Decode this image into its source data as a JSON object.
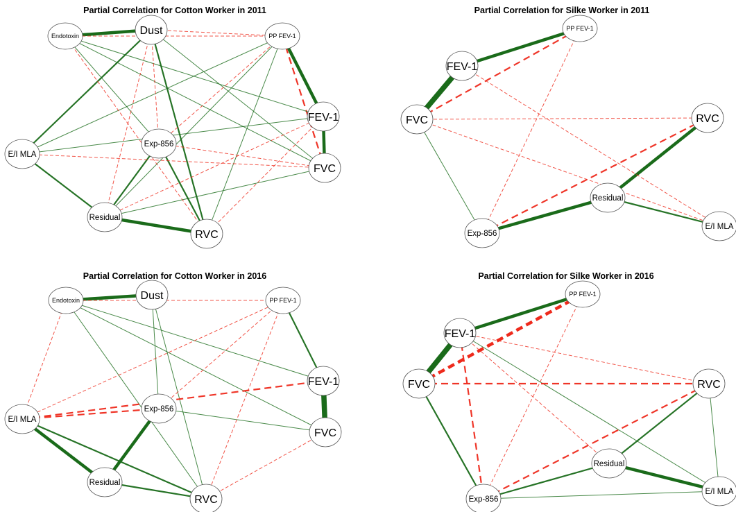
{
  "colors": {
    "positive": "#1a6b1a",
    "negative": "#ee2a1c"
  },
  "panels": [
    {
      "title": "Partial Correlation for Cotton Worker in 2011",
      "nodes": [
        {
          "id": "dust",
          "label": "Dust",
          "size": "large"
        },
        {
          "id": "endotoxin",
          "label": "Endotoxin",
          "size": "small"
        },
        {
          "id": "ppfev1",
          "label": "PP FEV-1",
          "size": "small"
        },
        {
          "id": "fev1",
          "label": "FEV-1",
          "size": "large"
        },
        {
          "id": "exp856",
          "label": "Exp-856",
          "size": "medium"
        },
        {
          "id": "eimla",
          "label": "E/I MLA",
          "size": "medium"
        },
        {
          "id": "fvc",
          "label": "FVC",
          "size": "large"
        },
        {
          "id": "residual",
          "label": "Residual",
          "size": "medium"
        },
        {
          "id": "rvc",
          "label": "RVC",
          "size": "large"
        }
      ],
      "edges": [
        {
          "from": "endotoxin",
          "to": "dust",
          "sign": "positive",
          "weight": "strong"
        },
        {
          "from": "ppfev1",
          "to": "fev1",
          "sign": "positive",
          "weight": "strong"
        },
        {
          "from": "fev1",
          "to": "fvc",
          "sign": "positive",
          "weight": "strong"
        },
        {
          "from": "ppfev1",
          "to": "fvc",
          "sign": "negative",
          "weight": "medium"
        },
        {
          "from": "residual",
          "to": "rvc",
          "sign": "positive",
          "weight": "strong"
        },
        {
          "from": "dust",
          "to": "eimla",
          "sign": "positive",
          "weight": "medium"
        },
        {
          "from": "dust",
          "to": "rvc",
          "sign": "positive",
          "weight": "medium"
        },
        {
          "from": "eimla",
          "to": "residual",
          "sign": "positive",
          "weight": "medium"
        },
        {
          "from": "exp856",
          "to": "residual",
          "sign": "positive",
          "weight": "medium"
        },
        {
          "from": "exp856",
          "to": "rvc",
          "sign": "positive",
          "weight": "medium"
        },
        {
          "from": "endotoxin",
          "to": "fev1",
          "sign": "positive",
          "weight": "thin"
        },
        {
          "from": "endotoxin",
          "to": "fvc",
          "sign": "positive",
          "weight": "thin"
        },
        {
          "from": "endotoxin",
          "to": "exp856",
          "sign": "positive",
          "weight": "thin"
        },
        {
          "from": "dust",
          "to": "fvc",
          "sign": "positive",
          "weight": "thin"
        },
        {
          "from": "ppfev1",
          "to": "eimla",
          "sign": "positive",
          "weight": "thin"
        },
        {
          "from": "ppfev1",
          "to": "residual",
          "sign": "positive",
          "weight": "thin"
        },
        {
          "from": "ppfev1",
          "to": "rvc",
          "sign": "positive",
          "weight": "thin"
        },
        {
          "from": "eimla",
          "to": "fev1",
          "sign": "positive",
          "weight": "thin"
        },
        {
          "from": "residual",
          "to": "fvc",
          "sign": "positive",
          "weight": "thin"
        },
        {
          "from": "dust",
          "to": "ppfev1",
          "sign": "negative",
          "weight": "thin"
        },
        {
          "from": "endotoxin",
          "to": "ppfev1",
          "sign": "negative",
          "weight": "thin"
        },
        {
          "from": "dust",
          "to": "exp856",
          "sign": "negative",
          "weight": "thin"
        },
        {
          "from": "dust",
          "to": "residual",
          "sign": "negative",
          "weight": "thin"
        },
        {
          "from": "endotoxin",
          "to": "rvc",
          "sign": "negative",
          "weight": "thin"
        },
        {
          "from": "eimla",
          "to": "fvc",
          "sign": "negative",
          "weight": "thin"
        },
        {
          "from": "residual",
          "to": "fev1",
          "sign": "negative",
          "weight": "thin"
        },
        {
          "from": "ppfev1",
          "to": "exp856",
          "sign": "negative",
          "weight": "thin"
        },
        {
          "from": "rvc",
          "to": "fev1",
          "sign": "negative",
          "weight": "thin"
        },
        {
          "from": "exp856",
          "to": "fvc",
          "sign": "negative",
          "weight": "thin"
        }
      ]
    },
    {
      "title": "Partial Correlation for Silke Worker in 2011",
      "nodes": [
        {
          "id": "ppfev1",
          "label": "PP FEV-1",
          "size": "small"
        },
        {
          "id": "fev1",
          "label": "FEV-1",
          "size": "large"
        },
        {
          "id": "fvc",
          "label": "FVC",
          "size": "large"
        },
        {
          "id": "rvc",
          "label": "RVC",
          "size": "large"
        },
        {
          "id": "residual",
          "label": "Residual",
          "size": "medium"
        },
        {
          "id": "exp856",
          "label": "Exp-856",
          "size": "medium"
        },
        {
          "id": "eimla",
          "label": "E/I MLA",
          "size": "medium"
        }
      ],
      "edges": [
        {
          "from": "fev1",
          "to": "ppfev1",
          "sign": "positive",
          "weight": "strong"
        },
        {
          "from": "fvc",
          "to": "fev1",
          "sign": "positive",
          "weight": "xstrong"
        },
        {
          "from": "residual",
          "to": "rvc",
          "sign": "positive",
          "weight": "strong"
        },
        {
          "from": "exp856",
          "to": "residual",
          "sign": "positive",
          "weight": "strong"
        },
        {
          "from": "residual",
          "to": "eimla",
          "sign": "positive",
          "weight": "medium"
        },
        {
          "from": "fvc",
          "to": "exp856",
          "sign": "positive",
          "weight": "thin"
        },
        {
          "from": "fvc",
          "to": "ppfev1",
          "sign": "negative",
          "weight": "medium"
        },
        {
          "from": "exp856",
          "to": "rvc",
          "sign": "negative",
          "weight": "medium"
        },
        {
          "from": "fvc",
          "to": "rvc",
          "sign": "negative",
          "weight": "thin"
        },
        {
          "from": "fvc",
          "to": "eimla",
          "sign": "negative",
          "weight": "thin"
        },
        {
          "from": "fev1",
          "to": "eimla",
          "sign": "negative",
          "weight": "thin"
        },
        {
          "from": "ppfev1",
          "to": "exp856",
          "sign": "negative",
          "weight": "thin"
        }
      ]
    },
    {
      "title": "Partial Correlation for Cotton Worker in 2016",
      "nodes": [
        {
          "id": "dust",
          "label": "Dust",
          "size": "large"
        },
        {
          "id": "endotoxin",
          "label": "Endotoxin",
          "size": "small"
        },
        {
          "id": "ppfev1",
          "label": "PP FEV-1",
          "size": "small"
        },
        {
          "id": "fev1",
          "label": "FEV-1",
          "size": "large"
        },
        {
          "id": "exp856",
          "label": "Exp-856",
          "size": "medium"
        },
        {
          "id": "eimla",
          "label": "E/I MLA",
          "size": "medium"
        },
        {
          "id": "fvc",
          "label": "FVC",
          "size": "large"
        },
        {
          "id": "residual",
          "label": "Residual",
          "size": "medium"
        },
        {
          "id": "rvc",
          "label": "RVC",
          "size": "large"
        }
      ],
      "edges": [
        {
          "from": "endotoxin",
          "to": "dust",
          "sign": "positive",
          "weight": "strong"
        },
        {
          "from": "fev1",
          "to": "fvc",
          "sign": "positive",
          "weight": "xstrong"
        },
        {
          "from": "ppfev1",
          "to": "fev1",
          "sign": "positive",
          "weight": "medium"
        },
        {
          "from": "eimla",
          "to": "residual",
          "sign": "positive",
          "weight": "strong"
        },
        {
          "from": "exp856",
          "to": "residual",
          "sign": "positive",
          "weight": "strong"
        },
        {
          "from": "residual",
          "to": "rvc",
          "sign": "positive",
          "weight": "medium"
        },
        {
          "from": "eimla",
          "to": "rvc",
          "sign": "positive",
          "weight": "medium"
        },
        {
          "from": "endotoxin",
          "to": "fev1",
          "sign": "positive",
          "weight": "thin"
        },
        {
          "from": "endotoxin",
          "to": "fvc",
          "sign": "positive",
          "weight": "thin"
        },
        {
          "from": "endotoxin",
          "to": "rvc",
          "sign": "positive",
          "weight": "thin"
        },
        {
          "from": "dust",
          "to": "exp856",
          "sign": "positive",
          "weight": "thin"
        },
        {
          "from": "dust",
          "to": "rvc",
          "sign": "positive",
          "weight": "thin"
        },
        {
          "from": "exp856",
          "to": "fvc",
          "sign": "positive",
          "weight": "thin"
        },
        {
          "from": "endotoxin",
          "to": "ppfev1",
          "sign": "negative",
          "weight": "thin"
        },
        {
          "from": "endotoxin",
          "to": "eimla",
          "sign": "negative",
          "weight": "thin"
        },
        {
          "from": "eimla",
          "to": "ppfev1",
          "sign": "negative",
          "weight": "thin"
        },
        {
          "from": "eimla",
          "to": "fev1",
          "sign": "negative",
          "weight": "medium"
        },
        {
          "from": "eimla",
          "to": "exp856",
          "sign": "negative",
          "weight": "medium"
        },
        {
          "from": "ppfev1",
          "to": "exp856",
          "sign": "negative",
          "weight": "thin"
        },
        {
          "from": "ppfev1",
          "to": "rvc",
          "sign": "negative",
          "weight": "thin"
        },
        {
          "from": "rvc",
          "to": "fvc",
          "sign": "negative",
          "weight": "thin"
        }
      ]
    },
    {
      "title": "Partial Correlation for Silke Worker in 2016",
      "nodes": [
        {
          "id": "ppfev1",
          "label": "PP FEV-1",
          "size": "small"
        },
        {
          "id": "fev1",
          "label": "FEV-1",
          "size": "large"
        },
        {
          "id": "fvc",
          "label": "FVC",
          "size": "large"
        },
        {
          "id": "rvc",
          "label": "RVC",
          "size": "large"
        },
        {
          "id": "residual",
          "label": "Residual",
          "size": "medium"
        },
        {
          "id": "exp856",
          "label": "Exp-856",
          "size": "medium"
        },
        {
          "id": "eimla",
          "label": "E/I MLA",
          "size": "medium"
        }
      ],
      "edges": [
        {
          "from": "fev1",
          "to": "ppfev1",
          "sign": "positive",
          "weight": "strong"
        },
        {
          "from": "fvc",
          "to": "fev1",
          "sign": "positive",
          "weight": "xstrong"
        },
        {
          "from": "fvc",
          "to": "exp856",
          "sign": "positive",
          "weight": "medium"
        },
        {
          "from": "residual",
          "to": "rvc",
          "sign": "positive",
          "weight": "medium"
        },
        {
          "from": "exp856",
          "to": "residual",
          "sign": "positive",
          "weight": "medium"
        },
        {
          "from": "residual",
          "to": "eimla",
          "sign": "positive",
          "weight": "strong"
        },
        {
          "from": "rvc",
          "to": "eimla",
          "sign": "positive",
          "weight": "thin"
        },
        {
          "from": "fev1",
          "to": "eimla",
          "sign": "positive",
          "weight": "thin"
        },
        {
          "from": "exp856",
          "to": "eimla",
          "sign": "positive",
          "weight": "thin"
        },
        {
          "from": "fvc",
          "to": "ppfev1",
          "sign": "negative",
          "weight": "strong"
        },
        {
          "from": "fvc",
          "to": "rvc",
          "sign": "negative",
          "weight": "medium"
        },
        {
          "from": "fev1",
          "to": "exp856",
          "sign": "negative",
          "weight": "medium"
        },
        {
          "from": "exp856",
          "to": "rvc",
          "sign": "negative",
          "weight": "medium"
        },
        {
          "from": "fev1",
          "to": "rvc",
          "sign": "negative",
          "weight": "thin"
        },
        {
          "from": "fev1",
          "to": "residual",
          "sign": "negative",
          "weight": "thin"
        },
        {
          "from": "ppfev1",
          "to": "exp856",
          "sign": "negative",
          "weight": "thin"
        }
      ]
    }
  ]
}
